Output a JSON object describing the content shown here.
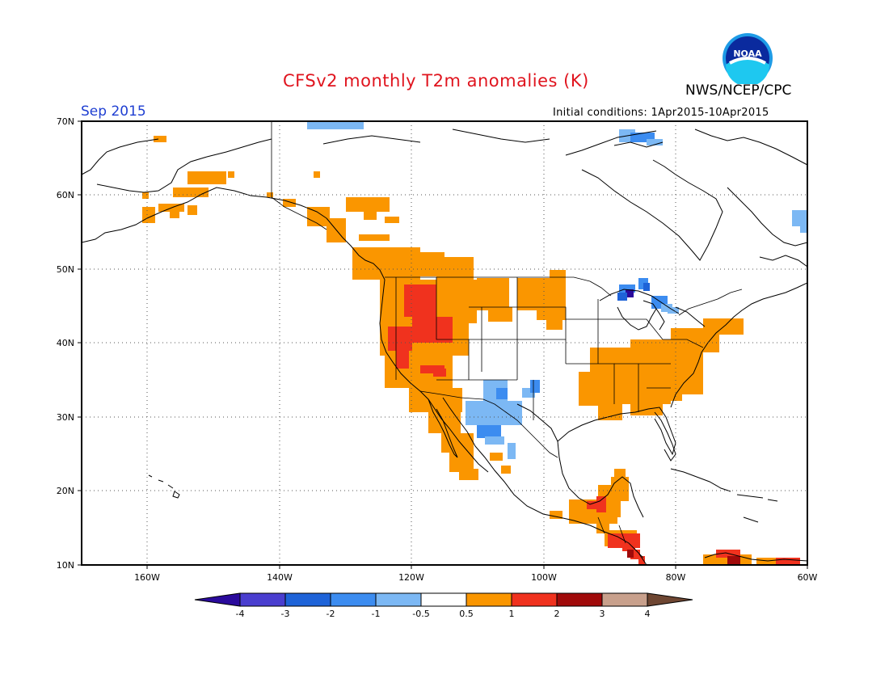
{
  "header": {
    "title": "CFSv2 monthly T2m anomalies (K)",
    "agency": "NWS/NCEP/CPC",
    "logo_text": "NOAA",
    "month": "Sep 2015",
    "initial_conditions": "Initial conditions: 1Apr2015-10Apr2015"
  },
  "map": {
    "lon_range": [
      -170,
      -60
    ],
    "lat_range": [
      10,
      70
    ],
    "lat_labels": [
      "70N",
      "60N",
      "50N",
      "40N",
      "30N",
      "20N",
      "10N"
    ],
    "lon_labels": [
      "160W",
      "140W",
      "120W",
      "100W",
      "80W",
      "60W"
    ],
    "grid": "dotted"
  },
  "colorbar": {
    "labels": [
      "-4",
      "-3",
      "-2",
      "-1",
      "-0.5",
      "0.5",
      "1",
      "2",
      "3",
      "4"
    ],
    "colors": [
      "#2a0a9c",
      "#4a3ecf",
      "#1e63d8",
      "#3c8cf0",
      "#7cb8f4",
      "#ffffff",
      "#fa9600",
      "#f0321e",
      "#a00a0a",
      "#c8a08c",
      "#6e4632"
    ]
  },
  "anomaly_colors": {
    "warm_0_5": "#fa9600",
    "warm_1": "#f0321e",
    "warm_2": "#a00a0a",
    "cool_0_5": "#7cb8f4",
    "cool_1": "#3c8cf0",
    "cool_2": "#1e63d8",
    "cool_3": "#2a0a9c"
  }
}
